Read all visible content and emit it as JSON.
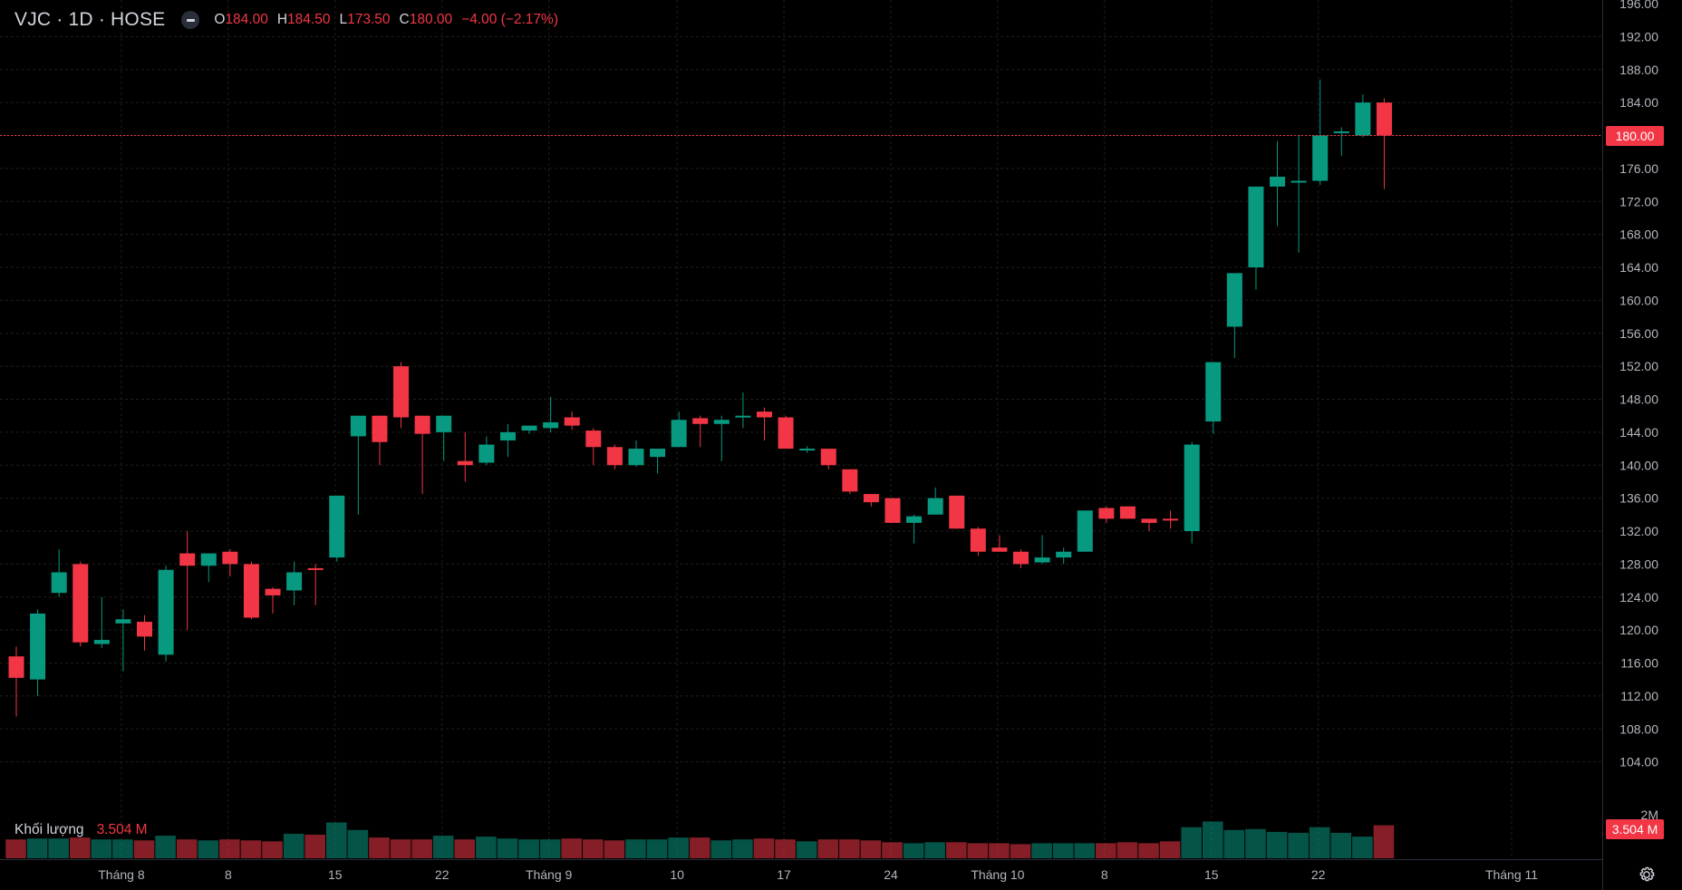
{
  "header": {
    "symbol": "VJC · 1D · HOSE",
    "ohlc": [
      {
        "label": "O",
        "value": "184.00"
      },
      {
        "label": "H",
        "value": "184.50"
      },
      {
        "label": "L",
        "value": "173.50"
      },
      {
        "label": "C",
        "value": "180.00"
      },
      {
        "label": "",
        "value": "−4.00 (−2.17%)"
      }
    ]
  },
  "volume_legend": {
    "name": "Khối lượng",
    "value": "3.504 M"
  },
  "price_axis": {
    "ticks": [
      "196.00",
      "192.00",
      "188.00",
      "184.00",
      "180.00",
      "176.00",
      "172.00",
      "168.00",
      "164.00",
      "160.00",
      "156.00",
      "152.00",
      "148.00",
      "144.00",
      "140.00",
      "136.00",
      "132.00",
      "128.00",
      "124.00",
      "120.00",
      "116.00",
      "112.00",
      "108.00",
      "104.00",
      "2M"
    ],
    "current_price_label": "180.00",
    "current_volume_label": "3.504 M"
  },
  "time_axis": {
    "ticks": [
      "Tháng 8",
      "8",
      "15",
      "22",
      "Tháng 9",
      "10",
      "17",
      "24",
      "Tháng 10",
      "8",
      "15",
      "22",
      "Tháng 11"
    ]
  },
  "colors": {
    "up": "#089981",
    "down": "#f23645",
    "background": "#000000",
    "text": "#d1d4dc",
    "grid": "#1f1f1f"
  },
  "chart_data": {
    "type": "candlestick",
    "symbol": "VJC",
    "interval": "1D",
    "exchange": "HOSE",
    "ylim": [
      100,
      196
    ],
    "current_price": 180.0,
    "series": [
      {
        "o": 116.8,
        "h": 118.0,
        "l": 109.5,
        "c": 114.2
      },
      {
        "o": 114.0,
        "h": 122.5,
        "l": 112.0,
        "c": 122.0
      },
      {
        "o": 124.5,
        "h": 129.8,
        "l": 124.0,
        "c": 127.0
      },
      {
        "o": 128.0,
        "h": 128.3,
        "l": 118.0,
        "c": 118.5
      },
      {
        "o": 118.3,
        "h": 124.0,
        "l": 117.8,
        "c": 118.8
      },
      {
        "o": 120.8,
        "h": 122.5,
        "l": 115.0,
        "c": 121.3
      },
      {
        "o": 121.0,
        "h": 121.8,
        "l": 117.5,
        "c": 119.2
      },
      {
        "o": 117.0,
        "h": 127.8,
        "l": 116.2,
        "c": 127.3
      },
      {
        "o": 129.3,
        "h": 132.0,
        "l": 120.0,
        "c": 127.8
      },
      {
        "o": 127.8,
        "h": 129.3,
        "l": 125.8,
        "c": 129.3
      },
      {
        "o": 129.5,
        "h": 129.8,
        "l": 126.5,
        "c": 128.0
      },
      {
        "o": 128.0,
        "h": 128.3,
        "l": 121.3,
        "c": 121.5
      },
      {
        "o": 125.0,
        "h": 125.2,
        "l": 122.0,
        "c": 124.2
      },
      {
        "o": 124.8,
        "h": 128.3,
        "l": 123.0,
        "c": 127.0
      },
      {
        "o": 127.5,
        "h": 128.0,
        "l": 123.0,
        "c": 127.3
      },
      {
        "o": 128.8,
        "h": 136.3,
        "l": 128.3,
        "c": 136.3
      },
      {
        "o": 143.5,
        "h": 146.0,
        "l": 134.0,
        "c": 146.0
      },
      {
        "o": 146.0,
        "h": 146.0,
        "l": 140.0,
        "c": 142.8
      },
      {
        "o": 152.0,
        "h": 152.5,
        "l": 144.5,
        "c": 145.8
      },
      {
        "o": 146.0,
        "h": 146.0,
        "l": 136.5,
        "c": 143.8
      },
      {
        "o": 144.0,
        "h": 146.0,
        "l": 140.5,
        "c": 146.0
      },
      {
        "o": 140.5,
        "h": 144.0,
        "l": 138.0,
        "c": 140.0
      },
      {
        "o": 140.3,
        "h": 143.5,
        "l": 140.0,
        "c": 142.5
      },
      {
        "o": 143.0,
        "h": 145.0,
        "l": 141.0,
        "c": 144.0
      },
      {
        "o": 144.2,
        "h": 144.8,
        "l": 143.8,
        "c": 144.8
      },
      {
        "o": 144.5,
        "h": 148.3,
        "l": 144.0,
        "c": 145.2
      },
      {
        "o": 145.8,
        "h": 146.5,
        "l": 144.3,
        "c": 144.8
      },
      {
        "o": 144.2,
        "h": 144.5,
        "l": 140.0,
        "c": 142.2
      },
      {
        "o": 142.2,
        "h": 142.5,
        "l": 139.5,
        "c": 140.0
      },
      {
        "o": 140.0,
        "h": 143.0,
        "l": 139.8,
        "c": 142.0
      },
      {
        "o": 141.0,
        "h": 142.0,
        "l": 139.0,
        "c": 142.0
      },
      {
        "o": 142.2,
        "h": 146.5,
        "l": 142.2,
        "c": 145.5
      },
      {
        "o": 145.7,
        "h": 146.0,
        "l": 142.2,
        "c": 145.0
      },
      {
        "o": 145.0,
        "h": 146.0,
        "l": 140.5,
        "c": 145.5
      },
      {
        "o": 145.8,
        "h": 148.8,
        "l": 144.5,
        "c": 146.0
      },
      {
        "o": 146.5,
        "h": 147.0,
        "l": 143.0,
        "c": 145.8
      },
      {
        "o": 145.8,
        "h": 146.0,
        "l": 142.0,
        "c": 142.0
      },
      {
        "o": 142.0,
        "h": 142.3,
        "l": 141.5,
        "c": 142.0
      },
      {
        "o": 142.0,
        "h": 142.0,
        "l": 139.5,
        "c": 140.0
      },
      {
        "o": 139.5,
        "h": 139.5,
        "l": 136.5,
        "c": 136.8
      },
      {
        "o": 136.5,
        "h": 136.5,
        "l": 135.0,
        "c": 135.5
      },
      {
        "o": 136.0,
        "h": 136.0,
        "l": 133.0,
        "c": 133.0
      },
      {
        "o": 133.0,
        "h": 134.0,
        "l": 130.5,
        "c": 133.8
      },
      {
        "o": 134.0,
        "h": 137.3,
        "l": 134.0,
        "c": 136.0
      },
      {
        "o": 136.3,
        "h": 136.3,
        "l": 132.3,
        "c": 132.3
      },
      {
        "o": 132.3,
        "h": 132.5,
        "l": 129.0,
        "c": 129.5
      },
      {
        "o": 130.0,
        "h": 131.5,
        "l": 129.5,
        "c": 129.5
      },
      {
        "o": 129.5,
        "h": 129.8,
        "l": 127.5,
        "c": 128.0
      },
      {
        "o": 128.2,
        "h": 131.5,
        "l": 128.0,
        "c": 128.8
      },
      {
        "o": 128.8,
        "h": 130.0,
        "l": 128.0,
        "c": 129.5
      },
      {
        "o": 129.5,
        "h": 134.5,
        "l": 129.5,
        "c": 134.5
      },
      {
        "o": 134.8,
        "h": 135.0,
        "l": 133.0,
        "c": 133.5
      },
      {
        "o": 135.0,
        "h": 135.0,
        "l": 133.5,
        "c": 133.5
      },
      {
        "o": 133.5,
        "h": 133.5,
        "l": 132.0,
        "c": 133.0
      },
      {
        "o": 133.5,
        "h": 134.5,
        "l": 132.3,
        "c": 133.3
      },
      {
        "o": 132.0,
        "h": 142.8,
        "l": 130.5,
        "c": 142.5
      },
      {
        "o": 145.3,
        "h": 152.5,
        "l": 143.8,
        "c": 152.5
      },
      {
        "o": 156.8,
        "h": 163.3,
        "l": 153.0,
        "c": 163.3
      },
      {
        "o": 164.0,
        "h": 173.8,
        "l": 161.3,
        "c": 173.8
      },
      {
        "o": 173.8,
        "h": 179.3,
        "l": 169.0,
        "c": 175.0
      },
      {
        "o": 174.5,
        "h": 180.0,
        "l": 165.8,
        "c": 174.5
      },
      {
        "o": 174.5,
        "h": 186.8,
        "l": 174.0,
        "c": 180.0
      },
      {
        "o": 180.5,
        "h": 181.0,
        "l": 177.5,
        "c": 180.5
      },
      {
        "o": 180.0,
        "h": 185.0,
        "l": 179.8,
        "c": 184.0
      },
      {
        "o": 184.0,
        "h": 184.5,
        "l": 173.5,
        "c": 180.0
      }
    ],
    "volume_scale_max_M": 5.0,
    "volume_M": [
      2.0,
      2.1,
      2.1,
      2.2,
      2.0,
      2.0,
      1.9,
      2.4,
      2.0,
      1.9,
      2.0,
      1.9,
      1.8,
      2.6,
      2.5,
      3.8,
      3.0,
      2.2,
      2.0,
      2.0,
      2.4,
      2.0,
      2.3,
      2.1,
      2.0,
      2.0,
      2.1,
      2.0,
      1.9,
      2.0,
      2.0,
      2.2,
      2.2,
      1.9,
      2.0,
      2.1,
      2.0,
      1.8,
      2.0,
      2.0,
      1.9,
      1.7,
      1.6,
      1.7,
      1.7,
      1.6,
      1.6,
      1.5,
      1.6,
      1.6,
      1.6,
      1.6,
      1.7,
      1.6,
      1.8,
      3.3,
      3.9,
      3.0,
      3.1,
      2.8,
      2.7,
      3.3,
      2.7,
      2.3,
      3.504
    ]
  }
}
